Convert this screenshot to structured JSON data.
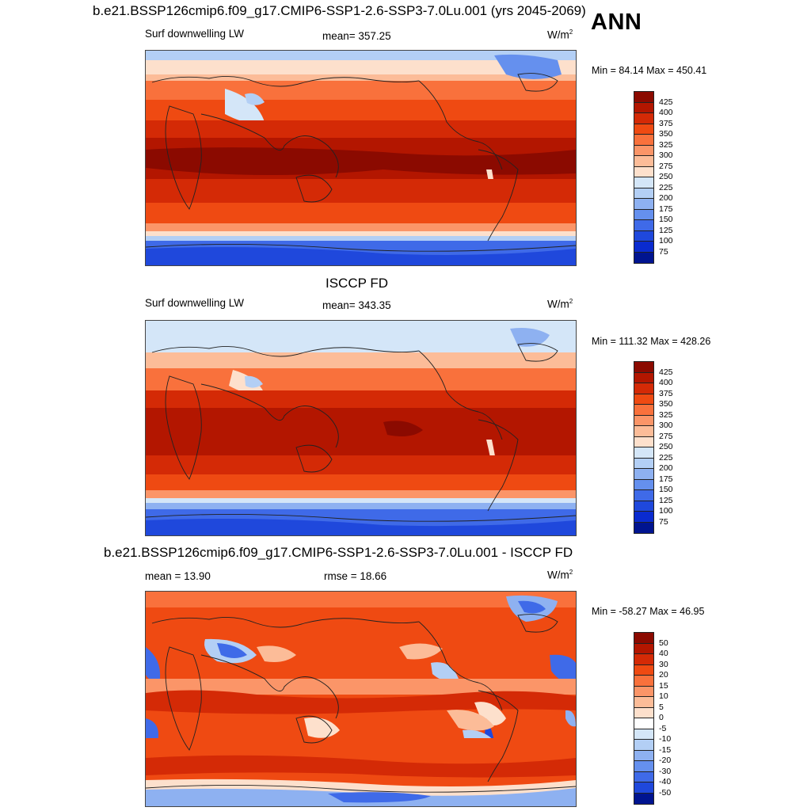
{
  "header": {
    "title": "b.e21.BSSP126cmip6.f09_g17.CMIP6-SSP1-2.6-SSP3-7.0Lu.001 (yrs 2045-2069)",
    "season": "ANN"
  },
  "panels": [
    {
      "title": "",
      "left_label": "Surf downwelling LW",
      "center_label": "mean= 357.25",
      "units": "W/m",
      "units_exp": "2",
      "minmax": "Min =  84.14 Max = 450.41",
      "colorbar_ticks": [
        "425",
        "400",
        "375",
        "350",
        "325",
        "300",
        "275",
        "250",
        "225",
        "200",
        "175",
        "150",
        "125",
        "100",
        "75"
      ]
    },
    {
      "title": "ISCCP FD",
      "left_label": "Surf downwelling LW",
      "center_label": "mean= 343.35",
      "units": "W/m",
      "units_exp": "2",
      "minmax": "Min = 111.32 Max = 428.26",
      "colorbar_ticks": [
        "425",
        "400",
        "375",
        "350",
        "325",
        "300",
        "275",
        "250",
        "225",
        "200",
        "175",
        "150",
        "125",
        "100",
        "75"
      ]
    },
    {
      "title": "b.e21.BSSP126cmip6.f09_g17.CMIP6-SSP1-2.6-SSP3-7.0Lu.001 - ISCCP FD",
      "left_label": "mean =  13.90",
      "center_label": "rmse =  18.66",
      "units": "W/m",
      "units_exp": "2",
      "minmax": "Min = -58.27 Max =  46.95",
      "colorbar_ticks": [
        "50",
        "40",
        "30",
        "20",
        "15",
        "10",
        "5",
        "0",
        "-5",
        "-10",
        "-15",
        "-20",
        "-30",
        "-40",
        "-50"
      ]
    }
  ],
  "colors": {
    "abs_scale": [
      "#8b0a00",
      "#b31600",
      "#d42a06",
      "#ef4a12",
      "#f9713c",
      "#fb9568",
      "#fcbc98",
      "#fde0cc",
      "#d4e6f8",
      "#b3cff5",
      "#8eb1f1",
      "#6590ee",
      "#3f6ae8",
      "#1f48dc",
      "#0a2bcf",
      "#001490"
    ],
    "diff_scale": [
      "#8b0a00",
      "#b31600",
      "#d42a06",
      "#ef4a12",
      "#f9713c",
      "#fb9568",
      "#fcbc98",
      "#fde0cc",
      "#ffffff",
      "#d4e6f8",
      "#b3cff5",
      "#8eb1f1",
      "#6590ee",
      "#3f6ae8",
      "#1f48dc",
      "#001490"
    ]
  }
}
